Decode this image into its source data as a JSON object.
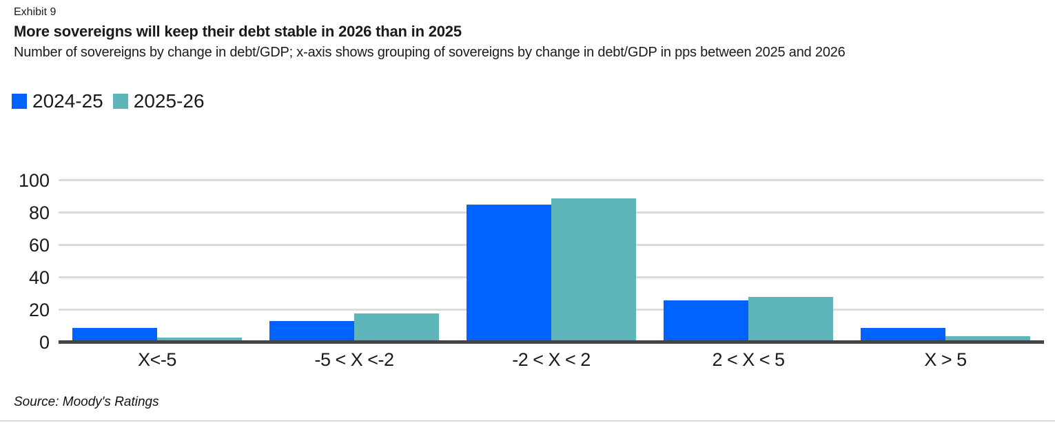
{
  "exhibit": {
    "label": "Exhibit 9"
  },
  "title": "More sovereigns will keep their debt stable in 2026 than in 2025",
  "subtitle": "Number of sovereigns by change in debt/GDP; x-axis shows grouping of sovereigns by change in debt/GDP in pps between 2025 and 2026",
  "legend": [
    {
      "label": "2024-25",
      "color": "#0062FF"
    },
    {
      "label": "2025-26",
      "color": "#5EB6BA"
    }
  ],
  "chart_data": {
    "type": "bar",
    "title": "More sovereigns will keep their debt stable in 2026 than in 2025",
    "categories": [
      "X<-5",
      "-5 < X <-2",
      "-2 < X < 2",
      "2 < X < 5",
      "X > 5"
    ],
    "series": [
      {
        "name": "2024-25",
        "color": "#0062FF",
        "values": [
          9,
          13,
          85,
          26,
          9
        ]
      },
      {
        "name": "2025-26",
        "color": "#5EB6BA",
        "values": [
          3,
          18,
          89,
          28,
          4
        ]
      }
    ],
    "ylim": [
      0,
      100
    ],
    "yticks": [
      0,
      20,
      40,
      60,
      80,
      100
    ],
    "grid": true,
    "legend_position": "top-left",
    "xlabel": "",
    "ylabel": ""
  },
  "source": "Source: Moody's Ratings",
  "colors": {
    "gridline": "#DBDBDB",
    "baseline": "#3F4448",
    "text": "#1A1A1A"
  }
}
